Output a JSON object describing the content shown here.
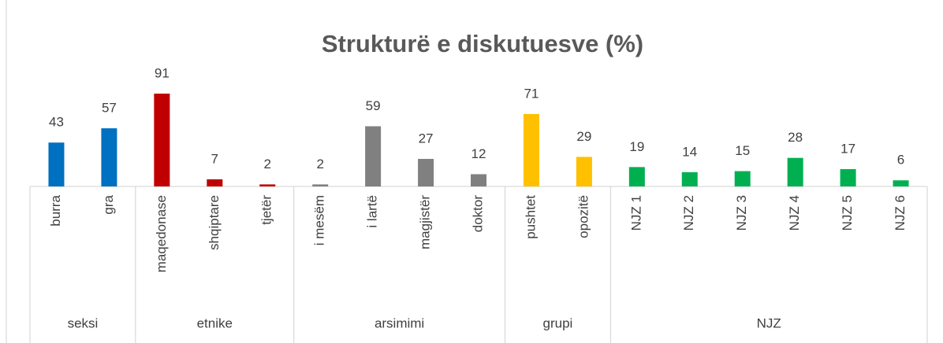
{
  "chart_data": {
    "type": "bar",
    "title": "Strukturë e diskutuesve (%)",
    "groups": [
      {
        "name": "seksi",
        "color": "#0070c0",
        "categories": [
          "burra",
          "gra"
        ],
        "values": [
          43,
          57
        ]
      },
      {
        "name": "etnike",
        "color": "#c00000",
        "categories": [
          "maqedonase",
          "shqiptare",
          "tjetër"
        ],
        "values": [
          91,
          7,
          2
        ]
      },
      {
        "name": "arsimimi",
        "color": "#808080",
        "categories": [
          "i mesëm",
          "i lartë",
          "magjistër",
          "doktor"
        ],
        "values": [
          2,
          59,
          27,
          12
        ]
      },
      {
        "name": "grupi",
        "color": "#ffc000",
        "categories": [
          "pushtet",
          "opozitë"
        ],
        "values": [
          71,
          29
        ]
      },
      {
        "name": "NJZ",
        "color": "#00b050",
        "categories": [
          "NJZ 1",
          "NJZ 2",
          "NJZ 3",
          "NJZ 4",
          "NJZ 5",
          "NJZ 6"
        ],
        "values": [
          19,
          14,
          15,
          28,
          17,
          6
        ]
      }
    ]
  }
}
